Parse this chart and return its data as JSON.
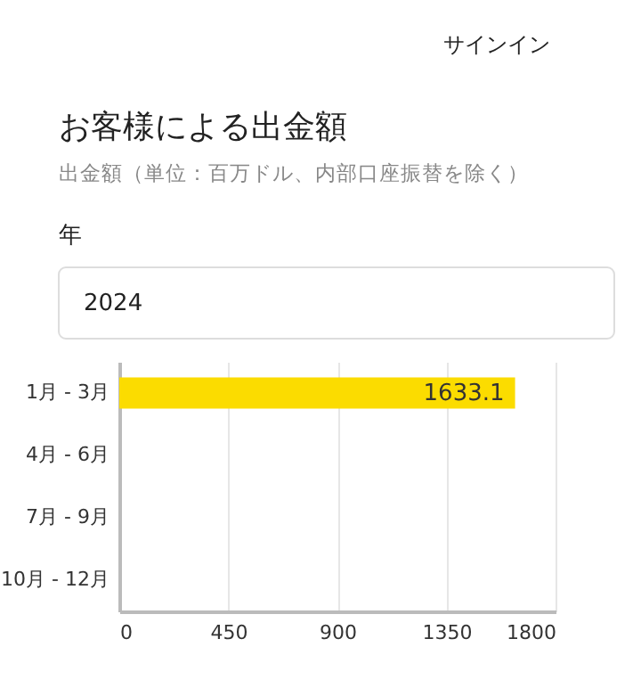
{
  "chart_data": {
    "type": "bar",
    "orientation": "horizontal",
    "title": "お客様による出金額",
    "subtitle": "出金額（単位：百万ドル、内部口座振替を除く）",
    "annotations": [
      "サインイン",
      "年",
      "2024"
    ],
    "categories": [
      "1月 - 3月",
      "4月 - 6月",
      "7月 - 9月",
      "10月 - 12月"
    ],
    "values": [
      1633.1,
      null,
      null,
      null
    ],
    "color": "#fbdc00",
    "xlim": [
      0,
      1800
    ],
    "xticks": [
      0,
      450,
      900,
      1350,
      1800
    ],
    "grid": "x",
    "data_labels": true
  }
}
